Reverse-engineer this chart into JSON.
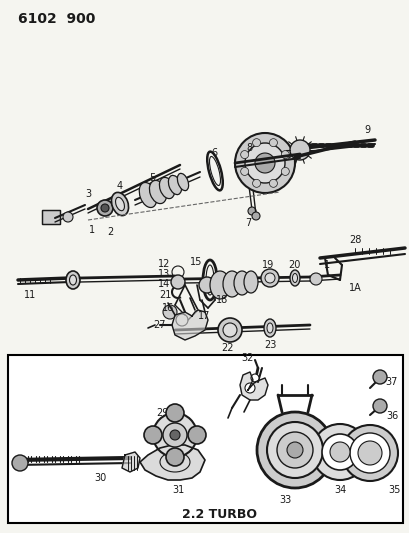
{
  "title": "6102  900",
  "subtitle": "2.2 TURBO",
  "bg_color": "#f5f5f0",
  "line_color": "#1a1a1a",
  "text_color": "#1a1a1a",
  "fig_width": 4.1,
  "fig_height": 5.33,
  "dpi": 100
}
